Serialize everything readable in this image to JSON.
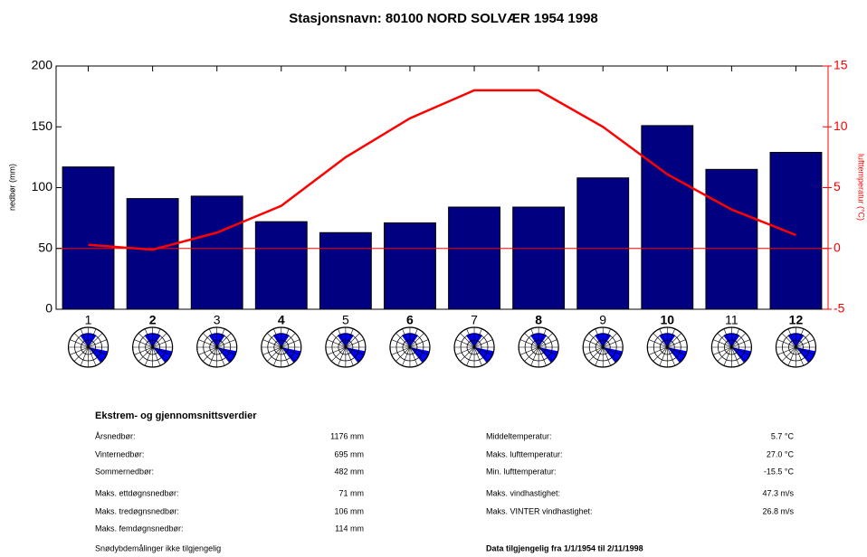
{
  "chart_data": {
    "type": "bar",
    "title": "Stasjonsnavn: 80100 NORD SOLVÆR 1954 1998",
    "y_label": "nedbør (mm)",
    "y2_label": "lufttemperatur (°C)",
    "categories": [
      "1",
      "2",
      "3",
      "4",
      "5",
      "6",
      "7",
      "8",
      "9",
      "10",
      "11",
      "12"
    ],
    "series": [
      {
        "type": "bar",
        "color": "#000080",
        "values": [
          117,
          91,
          93,
          72,
          63,
          71,
          84,
          84,
          108,
          151,
          115,
          129
        ]
      },
      {
        "type": "line",
        "color": "#ff0000",
        "axis": "y2",
        "values": [
          0.3,
          -0.1,
          1.3,
          3.5,
          7.5,
          10.7,
          13.0,
          13.0,
          10.0,
          6.1,
          3.2,
          1.1
        ]
      }
    ],
    "ylim": [
      0,
      200
    ],
    "yticks": [
      0,
      50,
      100,
      150,
      200
    ],
    "y2lim": [
      -5,
      15
    ],
    "y2ticks": [
      -5,
      0,
      5,
      10,
      15
    ],
    "y2_reference": 0,
    "y2color": "#ff0000"
  },
  "stats": {
    "title": "Ekstrem- og gjennomsnittsverdier",
    "left": [
      {
        "label": "Årsnedbør:",
        "value": "1176 mm"
      },
      {
        "label": "Vinternedbør:",
        "value": "695 mm"
      },
      {
        "label": "Sommernedbør:",
        "value": "482 mm"
      },
      {
        "label": "Maks. ettdøgnsnedbør:",
        "value": "71 mm"
      },
      {
        "label": "Maks. tredøgnsnedbør:",
        "value": "106 mm"
      },
      {
        "label": "Maks. femdøgnsnedbør:",
        "value": "114 mm"
      }
    ],
    "right": [
      {
        "label": "Middeltemperatur:",
        "value": "5.7 °C"
      },
      {
        "label": "Maks. lufttemperatur:",
        "value": "27.0 °C"
      },
      {
        "label": "Min. lufttemperatur:",
        "value": "-15.5 °C"
      },
      {
        "label": "Maks. vindhastighet:",
        "value": "47.3 m/s"
      },
      {
        "label": "Maks. VINTER vindhastighet:",
        "value": "26.8 m/s"
      }
    ],
    "footer_left": "Snødybdemålinger ikke tilgjengelig",
    "footer_right": "Data tilgjengelig fra 1/1/1954 til 2/11/1998"
  }
}
